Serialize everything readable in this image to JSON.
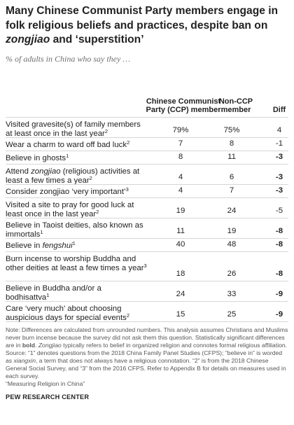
{
  "title": {
    "part1": "Many Chinese Communist Party members engage in folk religious beliefs and practices, despite ban on ",
    "italic": "zongjiao",
    "part2": " and ‘superstition’"
  },
  "subtitle": "% of adults in China who say they …",
  "columns": {
    "ccp": "Chinese Communist Party (CCP) member",
    "non_ccp": "Non-CCP member",
    "diff": "Diff"
  },
  "chart_data": {
    "type": "table",
    "series": [
      {
        "name": "Chinese Communist Party (CCP) member",
        "values": [
          "79%",
          "7",
          "8",
          "4",
          "4",
          "19",
          "11",
          "40",
          "18",
          "24",
          "15"
        ]
      },
      {
        "name": "Non-CCP member",
        "values": [
          "75%",
          "8",
          "11",
          "6",
          "7",
          "24",
          "19",
          "48",
          "26",
          "33",
          "25"
        ]
      },
      {
        "name": "Diff",
        "values": [
          "4",
          "-1",
          "-3",
          "-3",
          "-3",
          "-5",
          "-8",
          "-8",
          "-8",
          "-9",
          "-9"
        ]
      }
    ],
    "rows": [
      {
        "segments": [
          {
            "text": "Visited gravesite(s) of family members at least once in the last year"
          },
          {
            "text": "2",
            "sup": true
          }
        ],
        "ccp": "79%",
        "non_ccp": "75%",
        "diff": "4",
        "significant": false
      },
      {
        "segments": [
          {
            "text": "Wear a charm to ward off bad luck"
          },
          {
            "text": "2",
            "sup": true
          }
        ],
        "ccp": "7",
        "non_ccp": "8",
        "diff": "-1",
        "significant": false
      },
      {
        "segments": [
          {
            "text": "Believe in ghosts"
          },
          {
            "text": "1",
            "sup": true
          }
        ],
        "ccp": "8",
        "non_ccp": "11",
        "diff": "-3",
        "significant": true
      },
      {
        "segments": [
          {
            "text": "Attend "
          },
          {
            "text": "zongjiao",
            "italic": true
          },
          {
            "text": " (religious) activities at least a few times a year"
          },
          {
            "text": "2",
            "sup": true
          }
        ],
        "ccp": "4",
        "non_ccp": "6",
        "diff": "-3",
        "significant": true
      },
      {
        "segments": [
          {
            "text": "Consider zongjiao ‘very important’"
          },
          {
            "text": "3",
            "sup": true
          }
        ],
        "ccp": "4",
        "non_ccp": "7",
        "diff": "-3",
        "significant": true
      },
      {
        "segments": [
          {
            "text": "Visited a site to pray for good luck at least once in the last year"
          },
          {
            "text": "2",
            "sup": true
          }
        ],
        "ccp": "19",
        "non_ccp": "24",
        "diff": "-5",
        "significant": false
      },
      {
        "segments": [
          {
            "text": "Believe in Taoist deities, also known as immortals"
          },
          {
            "text": "1",
            "sup": true
          }
        ],
        "ccp": "11",
        "non_ccp": "19",
        "diff": "-8",
        "significant": true
      },
      {
        "segments": [
          {
            "text": "Believe in "
          },
          {
            "text": "fengshui",
            "italic": true
          },
          {
            "text": "1",
            "sup": true
          }
        ],
        "ccp": "40",
        "non_ccp": "48",
        "diff": "-8",
        "significant": true
      },
      {
        "segments": [
          {
            "text": "Burn incense to worship Buddha and other deities at least a few times a year"
          },
          {
            "text": "3",
            "sup": true
          }
        ],
        "ccp": "18",
        "non_ccp": "26",
        "diff": "-8",
        "significant": true
      },
      {
        "segments": [
          {
            "text": "Believe in Buddha and/or a bodhisattva"
          },
          {
            "text": "1",
            "sup": true
          }
        ],
        "ccp": "24",
        "non_ccp": "33",
        "diff": "-9",
        "significant": true
      },
      {
        "segments": [
          {
            "text": "Care ‘very much’ about choosing auspicious days for special events"
          },
          {
            "text": "2",
            "sup": true
          }
        ],
        "ccp": "15",
        "non_ccp": "25",
        "diff": "-9",
        "significant": true
      }
    ]
  },
  "notes": {
    "note_a": "Note: Differences are calculated from unrounded numbers. This analysis assumes Christians and Muslims never burn incense because the survey did not ask them this question. Statistically significant differences are in ",
    "note_bold": "bold",
    "note_b": ". ",
    "note_italic": "Zongjiao",
    "note_c": " typically refers to belief in organized religion and connotes formal religious affiliation.",
    "source_a": "Source: “1” denotes questions from the 2018 China Family Panel Studies (CFPS); “believe in” is worded as ",
    "source_italic": "xiangxin",
    "source_b": ", a term that does not always have a religious connotation. “2” is from the 2018 Chinese General Social Survey, and “3” from the 2016 CFPS. Refer to Appendix B for details on measures used in each survey.",
    "report": "“Measuring Religion in China”"
  },
  "logo": "PEW RESEARCH CENTER"
}
